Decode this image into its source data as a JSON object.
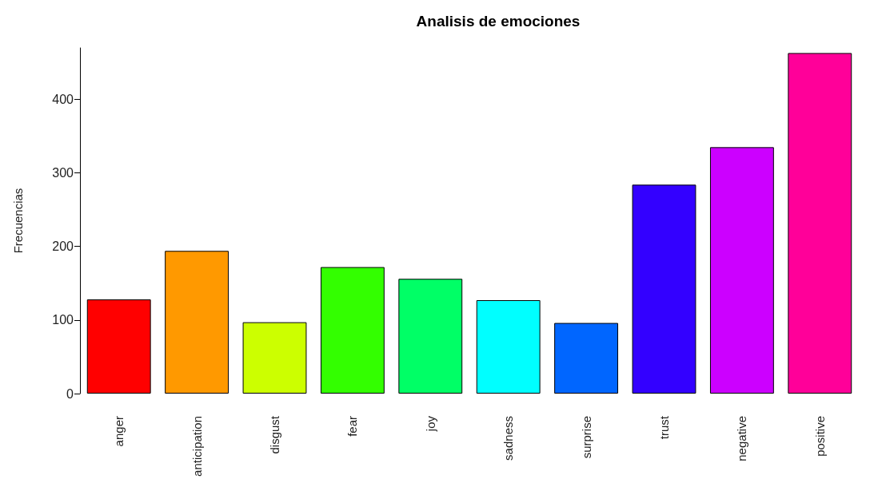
{
  "chart_data": {
    "type": "bar",
    "title": "Analisis de emociones",
    "ylabel": "Frecuencias",
    "categories": [
      "anger",
      "anticipation",
      "disgust",
      "fear",
      "joy",
      "sadness",
      "surprise",
      "trust",
      "negative",
      "positive"
    ],
    "values": [
      128,
      194,
      97,
      172,
      156,
      127,
      96,
      284,
      335,
      463
    ],
    "colors": [
      "#ff0000",
      "#ff9900",
      "#ccff00",
      "#33ff00",
      "#00ff66",
      "#00ffff",
      "#0066ff",
      "#3300ff",
      "#cc00ff",
      "#ff0099"
    ],
    "ylim": [
      0,
      470
    ],
    "yticks": [
      0,
      100,
      200,
      300,
      400
    ],
    "grid": false
  }
}
